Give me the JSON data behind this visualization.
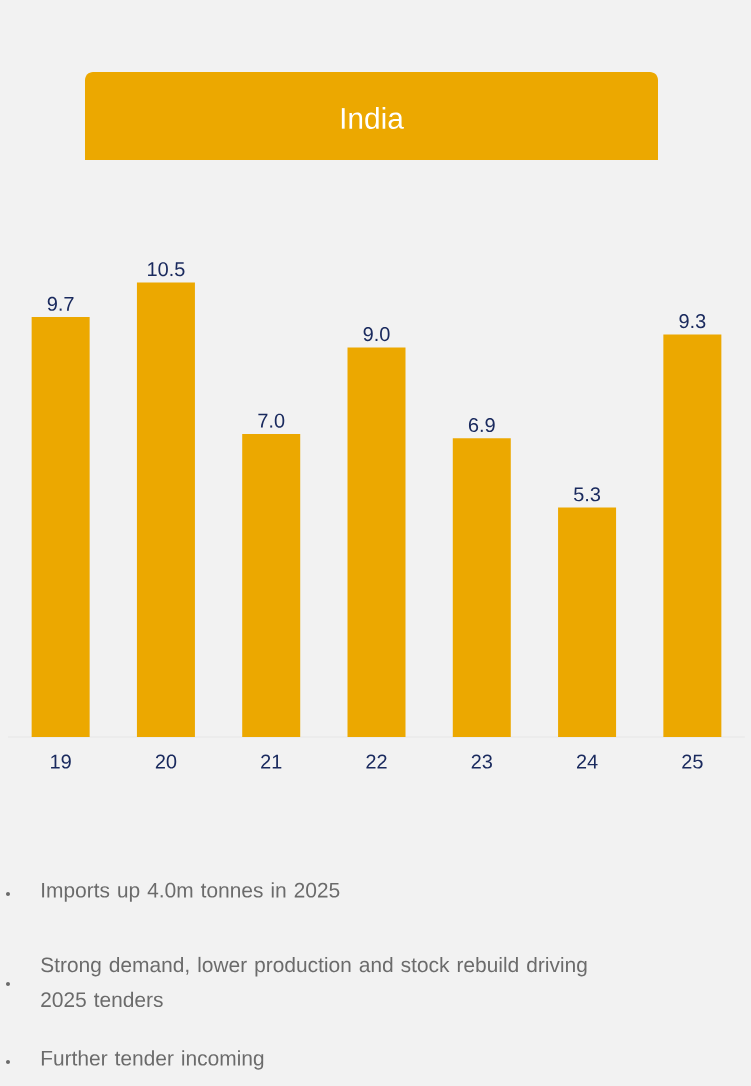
{
  "chart_data": {
    "type": "bar",
    "title": "India",
    "categories": [
      "19",
      "20",
      "21",
      "22",
      "23",
      "24",
      "25"
    ],
    "values": [
      9.7,
      10.5,
      7.0,
      9.0,
      6.9,
      5.3,
      9.3
    ],
    "color": "#eca800",
    "value_labels": [
      "9.7",
      "10.5",
      "7.0",
      "9.0",
      "6.9",
      "5.3",
      "9.3"
    ],
    "annotations": [
      "Imports up 4.0m tonnes in 2025",
      "Strong demand, lower production and stock rebuild driving 2025 tenders",
      "Further tender incoming"
    ]
  }
}
